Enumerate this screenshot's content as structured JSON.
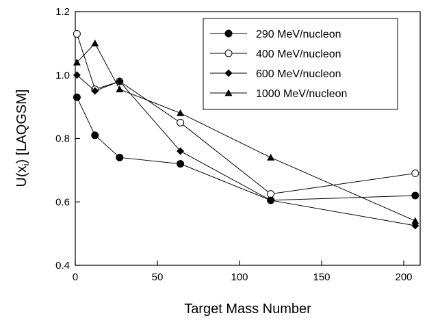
{
  "chart_data": {
    "type": "line",
    "title": "",
    "xlabel": "Target Mass Number",
    "ylabel": "U(x",
    "ylabel_subscript": "i",
    "ylabel_suffix": ") [LAQGSM]",
    "xlim": [
      0,
      210
    ],
    "ylim": [
      0.4,
      1.2
    ],
    "xticks": [
      0,
      50,
      100,
      150,
      200
    ],
    "xtick_labels": [
      "0",
      "50",
      "100",
      "150",
      "200"
    ],
    "yticks": [
      0.4,
      0.6,
      0.8,
      1.0,
      1.2
    ],
    "ytick_labels": [
      "0.4",
      "0.6",
      "0.8",
      "1.0",
      "1.2"
    ],
    "grid": false,
    "legend_position": "top-right",
    "series": [
      {
        "name": "290 MeV/nucleon",
        "marker": "filled-circle",
        "x": [
          1,
          12,
          27,
          64,
          119,
          207
        ],
        "y": [
          0.93,
          0.81,
          0.74,
          0.72,
          0.605,
          0.62
        ]
      },
      {
        "name": "400 MeV/nucleon",
        "marker": "open-circle",
        "x": [
          1,
          12,
          27,
          64,
          119,
          207
        ],
        "y": [
          1.13,
          0.955,
          0.98,
          0.85,
          0.625,
          0.69
        ]
      },
      {
        "name": "600 MeV/nucleon",
        "marker": "filled-diamond",
        "x": [
          1,
          12,
          27,
          64,
          119,
          207
        ],
        "y": [
          1.0,
          0.95,
          0.98,
          0.76,
          0.605,
          0.525
        ]
      },
      {
        "name": "1000 MeV/nucleon",
        "marker": "filled-triangle",
        "x": [
          1,
          12,
          27,
          64,
          119,
          207
        ],
        "y": [
          1.04,
          1.1,
          0.955,
          0.88,
          0.74,
          0.54
        ]
      }
    ]
  }
}
